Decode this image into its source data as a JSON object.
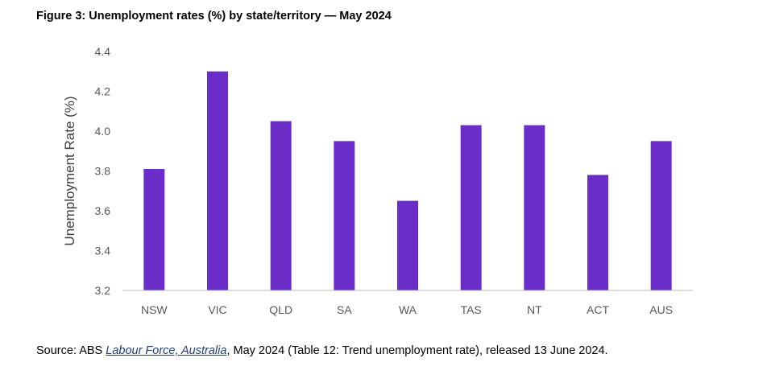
{
  "figure_title": "Figure 3: Unemployment rates (%) by state/territory — May 2024",
  "chart_data": {
    "type": "bar",
    "categories": [
      "NSW",
      "VIC",
      "QLD",
      "SA",
      "WA",
      "TAS",
      "NT",
      "ACT",
      "AUS"
    ],
    "values": [
      3.81,
      4.3,
      4.05,
      3.95,
      3.65,
      4.03,
      4.03,
      3.78,
      3.95
    ],
    "ylabel": "Unemployment Rate (%)",
    "xlabel": "",
    "ylim": [
      3.2,
      4.4
    ],
    "yticks": [
      "3.2",
      "3.4",
      "3.6",
      "3.8",
      "4.0",
      "4.2",
      "4.4"
    ],
    "bar_color": "#6a2dc8",
    "axis_color": "#bfbfbf",
    "grid": false,
    "legend": "none"
  },
  "source": {
    "prefix": "Source: ABS ",
    "link_text": "Labour Force, Australia",
    "suffix": ", May 2024 (Table 12: Trend unemployment rate), released 13 June 2024."
  }
}
